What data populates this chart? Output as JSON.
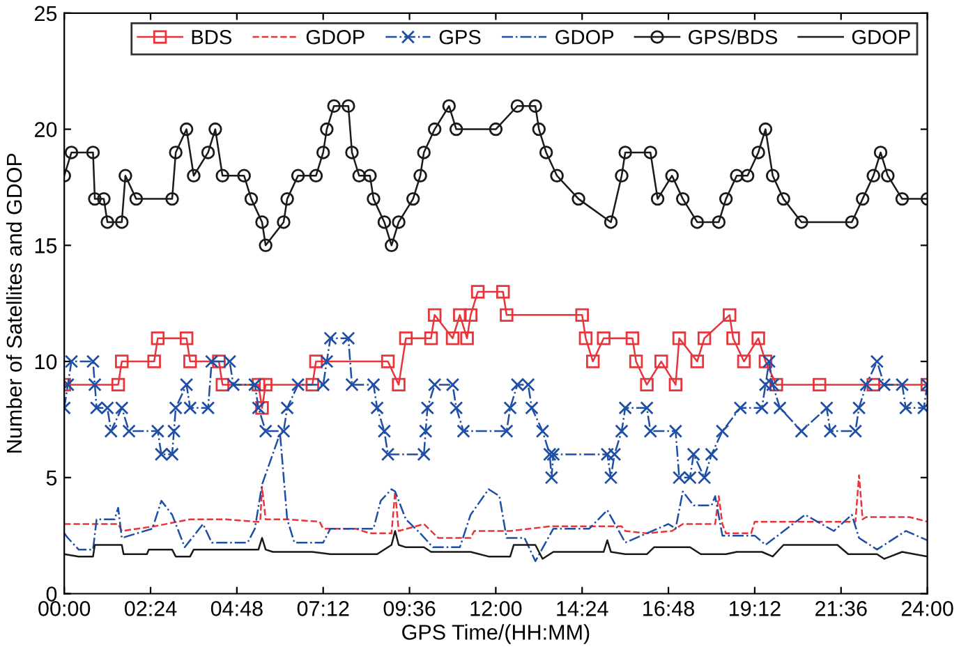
{
  "chart_data": {
    "type": "line",
    "xlabel": "GPS Time/(HH:MM)",
    "ylabel": "Number of Satellites and GDOP",
    "xlim": [
      0,
      24
    ],
    "ylim": [
      0,
      25
    ],
    "xticks": [
      {
        "value": 0,
        "label": "00:00"
      },
      {
        "value": 2.4,
        "label": "02:24"
      },
      {
        "value": 4.8,
        "label": "04:48"
      },
      {
        "value": 7.2,
        "label": "07:12"
      },
      {
        "value": 9.6,
        "label": "09:36"
      },
      {
        "value": 12,
        "label": "12:00"
      },
      {
        "value": 14.4,
        "label": "14:24"
      },
      {
        "value": 16.8,
        "label": "16:48"
      },
      {
        "value": 19.2,
        "label": "19:12"
      },
      {
        "value": 21.6,
        "label": "21:36"
      },
      {
        "value": 24,
        "label": "24:00"
      }
    ],
    "yticks": [
      0,
      5,
      10,
      15,
      20,
      25
    ],
    "grid": false,
    "legend": "top right",
    "series": [
      {
        "name": "BDS",
        "color": "#e8343b",
        "marker": "square",
        "line_style": "solid",
        "x": [
          0,
          1.5,
          1.6,
          2.5,
          2.6,
          3.4,
          3.5,
          4.3,
          4.4,
          5.4,
          5.5,
          5.6,
          6.9,
          7.0,
          9.0,
          9.3,
          9.5,
          10.2,
          10.3,
          10.8,
          11.0,
          11.2,
          11.3,
          11.5,
          12.2,
          12.3,
          14.4,
          14.5,
          14.7,
          15.0,
          15.8,
          15.9,
          16.2,
          16.6,
          17.0,
          17.1,
          17.6,
          17.8,
          18.5,
          18.6,
          18.9,
          19.3,
          19.5,
          19.8,
          21.0,
          22.5,
          24
        ],
        "values": [
          9,
          9,
          10,
          10,
          11,
          11,
          10,
          10,
          9,
          9,
          8,
          9,
          9,
          10,
          10,
          9,
          11,
          11,
          12,
          11,
          12,
          11,
          12,
          13,
          13,
          12,
          12,
          11,
          10,
          11,
          11,
          10,
          9,
          10,
          9,
          11,
          10,
          11,
          12,
          11,
          10,
          11,
          10,
          9,
          9,
          9,
          9
        ]
      },
      {
        "name": "GDOP",
        "color": "#e8343b",
        "marker": "none",
        "line_style": "dashed",
        "x": [
          0,
          1.0,
          1.5,
          1.6,
          2.5,
          3.5,
          4.5,
          5.3,
          5.45,
          5.5,
          5.6,
          6.2,
          7.1,
          7.2,
          8.1,
          8.5,
          9.1,
          9.2,
          9.3,
          10.0,
          10.4,
          11.3,
          11.4,
          12.4,
          13.5,
          15.5,
          15.6,
          16.2,
          16.9,
          17.2,
          18.1,
          18.2,
          18.3,
          18.4,
          19.1,
          19.2,
          20.5,
          22.0,
          22.1,
          22.2,
          22.3,
          23.5,
          24
        ],
        "values": [
          3.0,
          3.0,
          3.0,
          2.7,
          2.9,
          3.2,
          3.2,
          3.1,
          3.1,
          4.6,
          3.2,
          3.2,
          3.1,
          2.8,
          2.8,
          2.6,
          2.6,
          4.4,
          2.7,
          3.0,
          2.4,
          2.4,
          2.7,
          2.7,
          2.9,
          2.9,
          2.7,
          2.6,
          2.7,
          3.0,
          3.0,
          4.2,
          3.0,
          2.6,
          2.6,
          3.1,
          3.1,
          3.1,
          5.1,
          3.2,
          3.3,
          3.3,
          3.1
        ]
      },
      {
        "name": "GPS",
        "color": "#1f4fa5",
        "marker": "cross",
        "line_style": "dashdot",
        "x": [
          0,
          0.1,
          0.2,
          0.8,
          0.85,
          0.9,
          1.2,
          1.3,
          1.6,
          1.8,
          2.6,
          2.7,
          3.0,
          3.05,
          3.1,
          3.4,
          3.5,
          4.0,
          4.1,
          4.6,
          4.7,
          5.3,
          5.4,
          5.6,
          6.1,
          6.2,
          6.5,
          7.2,
          7.3,
          7.4,
          7.9,
          8.0,
          8.6,
          8.7,
          8.9,
          9.0,
          10.0,
          10.05,
          10.1,
          10.3,
          10.8,
          10.9,
          11.1,
          12.3,
          12.4,
          12.6,
          12.9,
          13.0,
          13.3,
          13.5,
          13.55,
          13.6,
          15.1,
          15.2,
          15.3,
          15.5,
          15.6,
          16.2,
          16.3,
          17.0,
          17.1,
          17.4,
          17.5,
          17.8,
          18.0,
          18.3,
          18.8,
          19.4,
          19.5,
          19.6,
          19.7,
          19.9,
          20.5,
          21.2,
          21.3,
          22.0,
          22.1,
          22.3,
          22.6,
          22.8,
          23.3,
          23.4,
          23.9,
          24
        ],
        "values": [
          8,
          9,
          10,
          10,
          9,
          8,
          8,
          7,
          8,
          7,
          7,
          6,
          6,
          7,
          8,
          9,
          8,
          8,
          10,
          10,
          9,
          9,
          8,
          7,
          7,
          8,
          9,
          9,
          10,
          11,
          11,
          9,
          9,
          8,
          7,
          6,
          6,
          7,
          8,
          9,
          9,
          8,
          7,
          7,
          8,
          9,
          9,
          8,
          7,
          6,
          5,
          6,
          6,
          5,
          6,
          7,
          8,
          8,
          7,
          7,
          5,
          5,
          6,
          5,
          6,
          7,
          8,
          8,
          9,
          10,
          9,
          8,
          7,
          8,
          7,
          7,
          8,
          9,
          10,
          9,
          9,
          8,
          8,
          9
        ]
      },
      {
        "name": "GDOP",
        "color": "#1f4fa5",
        "marker": "none",
        "line_style": "dashdot",
        "x": [
          0,
          0.1,
          0.4,
          0.8,
          0.9,
          1.4,
          1.5,
          1.6,
          2.45,
          2.7,
          3.0,
          3.35,
          3.86,
          4.1,
          5.1,
          5.3,
          5.5,
          6.0,
          6.2,
          6.4,
          7.2,
          7.4,
          8.6,
          8.8,
          9.1,
          9.2,
          9.5,
          9.9,
          10.25,
          11.0,
          11.3,
          11.8,
          12.1,
          12.3,
          12.8,
          13.1,
          13.6,
          14.6,
          15.1,
          15.6,
          16.8,
          17.0,
          17.2,
          17.5,
          18.0,
          18.1,
          18.3,
          19.2,
          19.5,
          20.6,
          21.4,
          21.9,
          22.1,
          22.6,
          23.4,
          24
        ],
        "values": [
          2.6,
          2.4,
          1.9,
          1.9,
          3.2,
          3.2,
          3.7,
          2.4,
          2.8,
          4.0,
          3.4,
          2.0,
          3.0,
          2.2,
          2.2,
          2.8,
          4.7,
          6.9,
          3.2,
          2.2,
          2.2,
          2.8,
          2.8,
          4.0,
          4.5,
          4.4,
          3.2,
          2.6,
          2.0,
          2.0,
          3.4,
          4.5,
          4.2,
          2.4,
          2.4,
          1.4,
          2.8,
          2.8,
          3.6,
          2.2,
          3.0,
          2.8,
          4.4,
          3.8,
          3.8,
          4.2,
          2.5,
          2.5,
          2.1,
          3.4,
          2.7,
          3.4,
          2.4,
          1.9,
          2.7,
          2.3
        ]
      },
      {
        "name": "GPS/BDS",
        "color": "#1a1a1a",
        "marker": "circle",
        "line_style": "solid",
        "x": [
          0,
          0.2,
          0.8,
          0.85,
          1.1,
          1.2,
          1.6,
          1.7,
          2.0,
          3.0,
          3.1,
          3.4,
          3.6,
          4.0,
          4.2,
          4.4,
          5.0,
          5.2,
          5.5,
          5.6,
          6.1,
          6.2,
          6.5,
          7.0,
          7.2,
          7.3,
          7.5,
          7.9,
          8.0,
          8.2,
          8.5,
          8.6,
          8.9,
          9.1,
          9.3,
          9.7,
          9.9,
          10.0,
          10.3,
          10.7,
          10.9,
          12.0,
          12.6,
          13.1,
          13.2,
          13.4,
          13.7,
          14.3,
          15.2,
          15.5,
          15.6,
          16.3,
          16.5,
          16.9,
          17.2,
          17.6,
          18.2,
          18.4,
          18.7,
          19.0,
          19.3,
          19.5,
          19.7,
          20.0,
          20.5,
          21.9,
          22.2,
          22.5,
          22.7,
          22.9,
          23.3,
          24
        ],
        "values": [
          18,
          19,
          19,
          17,
          17,
          16,
          16,
          18,
          17,
          17,
          19,
          20,
          18,
          19,
          20,
          18,
          18,
          17,
          16,
          15,
          16,
          17,
          18,
          18,
          19,
          20,
          21,
          21,
          19,
          18,
          18,
          17,
          16,
          15,
          16,
          17,
          18,
          19,
          20,
          21,
          20,
          20,
          21,
          21,
          20,
          19,
          18,
          17,
          16,
          18,
          19,
          19,
          17,
          18,
          17,
          16,
          16,
          17,
          18,
          18,
          19,
          20,
          18,
          17,
          16,
          16,
          17,
          18,
          19,
          18,
          17,
          17
        ]
      },
      {
        "name": "GDOP",
        "color": "#1a1a1a",
        "marker": "none",
        "line_style": "solid",
        "x": [
          0,
          0.4,
          0.8,
          0.85,
          1.6,
          1.65,
          2.3,
          2.35,
          3.0,
          3.1,
          3.5,
          3.6,
          5.4,
          5.5,
          5.6,
          5.8,
          6.9,
          7.4,
          8.7,
          9.1,
          9.2,
          9.3,
          9.5,
          10.0,
          10.2,
          11.3,
          11.8,
          12.4,
          12.5,
          13.1,
          13.3,
          13.6,
          15.0,
          15.1,
          15.2,
          15.6,
          16.2,
          16.4,
          17.4,
          17.7,
          18.4,
          18.7,
          19.4,
          19.7,
          20.0,
          21.5,
          21.8,
          22.6,
          22.8,
          23.3,
          24
        ],
        "values": [
          1.7,
          1.6,
          1.6,
          2.1,
          2.1,
          1.7,
          1.7,
          1.9,
          1.9,
          1.6,
          1.6,
          1.9,
          1.9,
          2.4,
          1.9,
          1.8,
          1.8,
          1.7,
          1.7,
          2.1,
          2.7,
          2.1,
          2.0,
          2.0,
          1.8,
          1.8,
          1.6,
          1.6,
          2.1,
          2.1,
          1.5,
          1.8,
          1.8,
          2.3,
          1.8,
          1.7,
          1.7,
          2.0,
          2.0,
          1.7,
          1.7,
          1.8,
          1.8,
          1.6,
          2.1,
          2.1,
          1.7,
          1.7,
          1.5,
          1.8,
          1.6
        ]
      }
    ]
  }
}
